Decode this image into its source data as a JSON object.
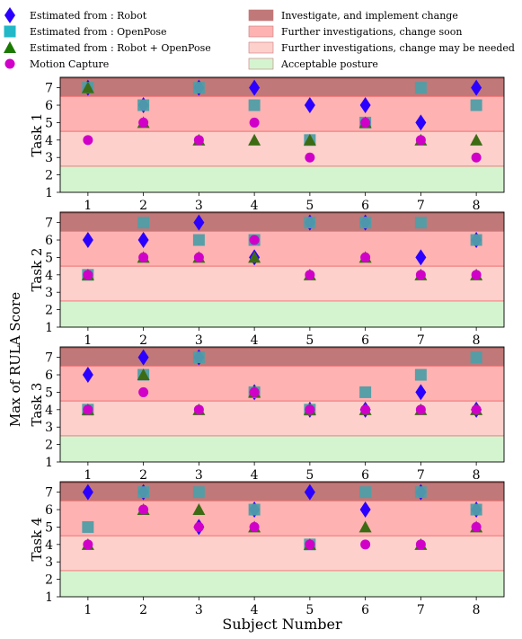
{
  "figure": {
    "ylabel": "Max of RULA Score",
    "xlabel": "Subject Number"
  },
  "legend": {
    "markers": [
      {
        "label": "Estimated from :  Robot",
        "marker": "diamond",
        "color": "#2b00ff",
        "icon": "diamond-icon"
      },
      {
        "label": "Estimated from :  OpenPose",
        "marker": "square",
        "color": "#22b8c8",
        "icon": "square-icon"
      },
      {
        "label": "Estimated from :  Robot + OpenPose",
        "marker": "triangle",
        "color": "#1a7a00",
        "icon": "triangle-icon"
      },
      {
        "label": "Motion Capture",
        "marker": "circle",
        "color": "#d000c8",
        "icon": "circle-icon"
      }
    ],
    "zones": [
      {
        "label": "Investigate,  and implement change",
        "color": "#c07878"
      },
      {
        "label": "Further investigations,  change soon",
        "color": "#ffb2b2"
      },
      {
        "label": "Further investigations,  change may be needed",
        "color": "#fdd0cc"
      },
      {
        "label": "Acceptable posture",
        "color": "#d4f4cf"
      }
    ]
  },
  "chart_data": [
    {
      "type": "scatter",
      "panel_label": "Task 1",
      "x": [
        1,
        2,
        3,
        4,
        5,
        6,
        7,
        8
      ],
      "ylim": [
        1,
        7.6
      ],
      "series": [
        {
          "name": "Estimated from :  Robot",
          "values": [
            7,
            6,
            7,
            7,
            6,
            6,
            5,
            7
          ]
        },
        {
          "name": "Estimated from :  OpenPose",
          "values": [
            7,
            6,
            7,
            6,
            4,
            5,
            7,
            6
          ]
        },
        {
          "name": "Estimated from :  Robot + OpenPose",
          "values": [
            7,
            5,
            4,
            4,
            4,
            5,
            4,
            4
          ]
        },
        {
          "name": "Motion Capture",
          "values": [
            4,
            5,
            4,
            5,
            3,
            5,
            4,
            3
          ]
        }
      ]
    },
    {
      "type": "scatter",
      "panel_label": "Task 2",
      "x": [
        1,
        2,
        3,
        4,
        5,
        6,
        7,
        8
      ],
      "ylim": [
        1,
        7.6
      ],
      "series": [
        {
          "name": "Estimated from :  Robot",
          "values": [
            6,
            6,
            7,
            5,
            7,
            7,
            5,
            6
          ]
        },
        {
          "name": "Estimated from :  OpenPose",
          "values": [
            4,
            7,
            6,
            6,
            7,
            7,
            7,
            6
          ]
        },
        {
          "name": "Estimated from :  Robot + OpenPose",
          "values": [
            4,
            5,
            5,
            5,
            4,
            5,
            4,
            4
          ]
        },
        {
          "name": "Motion Capture",
          "values": [
            4,
            5,
            5,
            6,
            4,
            5,
            4,
            4
          ]
        }
      ]
    },
    {
      "type": "scatter",
      "panel_label": "Task 3",
      "x": [
        1,
        2,
        3,
        4,
        5,
        6,
        7,
        8
      ],
      "ylim": [
        1,
        7.6
      ],
      "series": [
        {
          "name": "Estimated from :  Robot",
          "values": [
            6,
            7,
            7,
            5,
            4,
            4,
            5,
            4
          ]
        },
        {
          "name": "Estimated from :  OpenPose",
          "values": [
            4,
            6,
            7,
            5,
            4,
            5,
            6,
            7
          ]
        },
        {
          "name": "Estimated from :  Robot + OpenPose",
          "values": [
            4,
            6,
            4,
            5,
            4,
            4,
            4,
            4
          ]
        },
        {
          "name": "Motion Capture",
          "values": [
            4,
            5,
            4,
            5,
            4,
            4,
            4,
            4
          ]
        }
      ]
    },
    {
      "type": "scatter",
      "panel_label": "Task 4",
      "x": [
        1,
        2,
        3,
        4,
        5,
        6,
        7,
        8
      ],
      "ylim": [
        1,
        7.6
      ],
      "series": [
        {
          "name": "Estimated from :  Robot",
          "values": [
            7,
            7,
            5,
            6,
            7,
            6,
            7,
            6
          ]
        },
        {
          "name": "Estimated from :  OpenPose",
          "values": [
            5,
            7,
            7,
            6,
            4,
            7,
            7,
            6
          ]
        },
        {
          "name": "Estimated from :  Robot + OpenPose",
          "values": [
            4,
            6,
            6,
            5,
            4,
            5,
            4,
            5
          ]
        },
        {
          "name": "Motion Capture",
          "values": [
            4,
            6,
            5,
            5,
            4,
            4,
            4,
            5
          ]
        }
      ]
    }
  ]
}
